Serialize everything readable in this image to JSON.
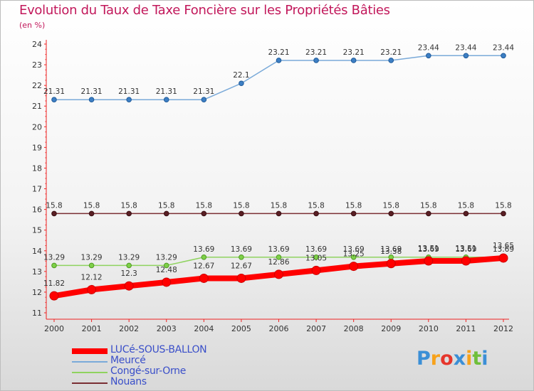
{
  "title": "Evolution du Taux de Taxe Foncière sur les Propriétés Bâties",
  "subtitle": "(en %)",
  "logo": {
    "letters": [
      "P",
      "r",
      "o",
      "x",
      "i",
      "t",
      "i"
    ],
    "colors": [
      "#3b8fd6",
      "#f7a21b",
      "#e6362c",
      "#3b8fd6",
      "#f7a21b",
      "#6fbf3a",
      "#3b8fd6"
    ]
  },
  "chart_data": {
    "type": "line",
    "title": "Evolution du Taux de Taxe Foncière sur les Propriétés Bâties",
    "ylabel": "(en %)",
    "xlabel": "",
    "x": [
      "2000",
      "2001",
      "2002",
      "2003",
      "2004",
      "2005",
      "2006",
      "2007",
      "2008",
      "2009",
      "2010",
      "2011",
      "2012"
    ],
    "ylim": [
      11,
      24
    ],
    "yticks": [
      "11",
      "12",
      "13",
      "14",
      "15",
      "16",
      "17",
      "18",
      "19",
      "20",
      "21",
      "22",
      "23",
      "24"
    ],
    "grid": false,
    "legend_position": "bottom-left",
    "series": [
      {
        "name": "LUCé-SOUS-BALLON",
        "color": "#ff0000",
        "values": [
          11.82,
          12.12,
          12.3,
          12.48,
          12.67,
          12.67,
          12.86,
          13.05,
          13.25,
          13.38,
          13.51,
          13.51,
          13.65
        ],
        "labels": [
          "11.82",
          "12.12",
          "12.3",
          "12.48",
          "12.67",
          "12.67",
          "12.86",
          "13.05",
          "13.25",
          "13.38",
          "13.51",
          "13.51",
          "13.65"
        ]
      },
      {
        "name": "Meurcé",
        "color": "#7aaad9",
        "values": [
          21.31,
          21.31,
          21.31,
          21.31,
          21.31,
          22.1,
          23.21,
          23.21,
          23.21,
          23.21,
          23.44,
          23.44,
          23.44
        ],
        "labels": [
          "21.31",
          "21.31",
          "21.31",
          "21.31",
          "21.31",
          "22.1",
          "23.21",
          "23.21",
          "23.21",
          "23.21",
          "23.44",
          "23.44",
          "23.44"
        ]
      },
      {
        "name": "Congé-sur-Orne",
        "color": "#8fd35f",
        "values": [
          13.29,
          13.29,
          13.29,
          13.29,
          13.69,
          13.69,
          13.69,
          13.69,
          13.69,
          13.69,
          13.69,
          13.69,
          13.69
        ],
        "labels": [
          "13.29",
          "13.29",
          "13.29",
          "13.29",
          "13.69",
          "13.69",
          "13.69",
          "13.69",
          "13.69",
          "13.69",
          "13.69",
          "13.69",
          "13.69"
        ]
      },
      {
        "name": "Nouans",
        "color": "#7a2e33",
        "values": [
          15.8,
          15.8,
          15.8,
          15.8,
          15.8,
          15.8,
          15.8,
          15.8,
          15.8,
          15.8,
          15.8,
          15.8,
          15.8
        ],
        "labels": [
          "15.8",
          "15.8",
          "15.8",
          "15.8",
          "15.8",
          "15.8",
          "15.8",
          "15.8",
          "15.8",
          "15.8",
          "15.8",
          "15.8",
          "15.8"
        ]
      }
    ]
  }
}
